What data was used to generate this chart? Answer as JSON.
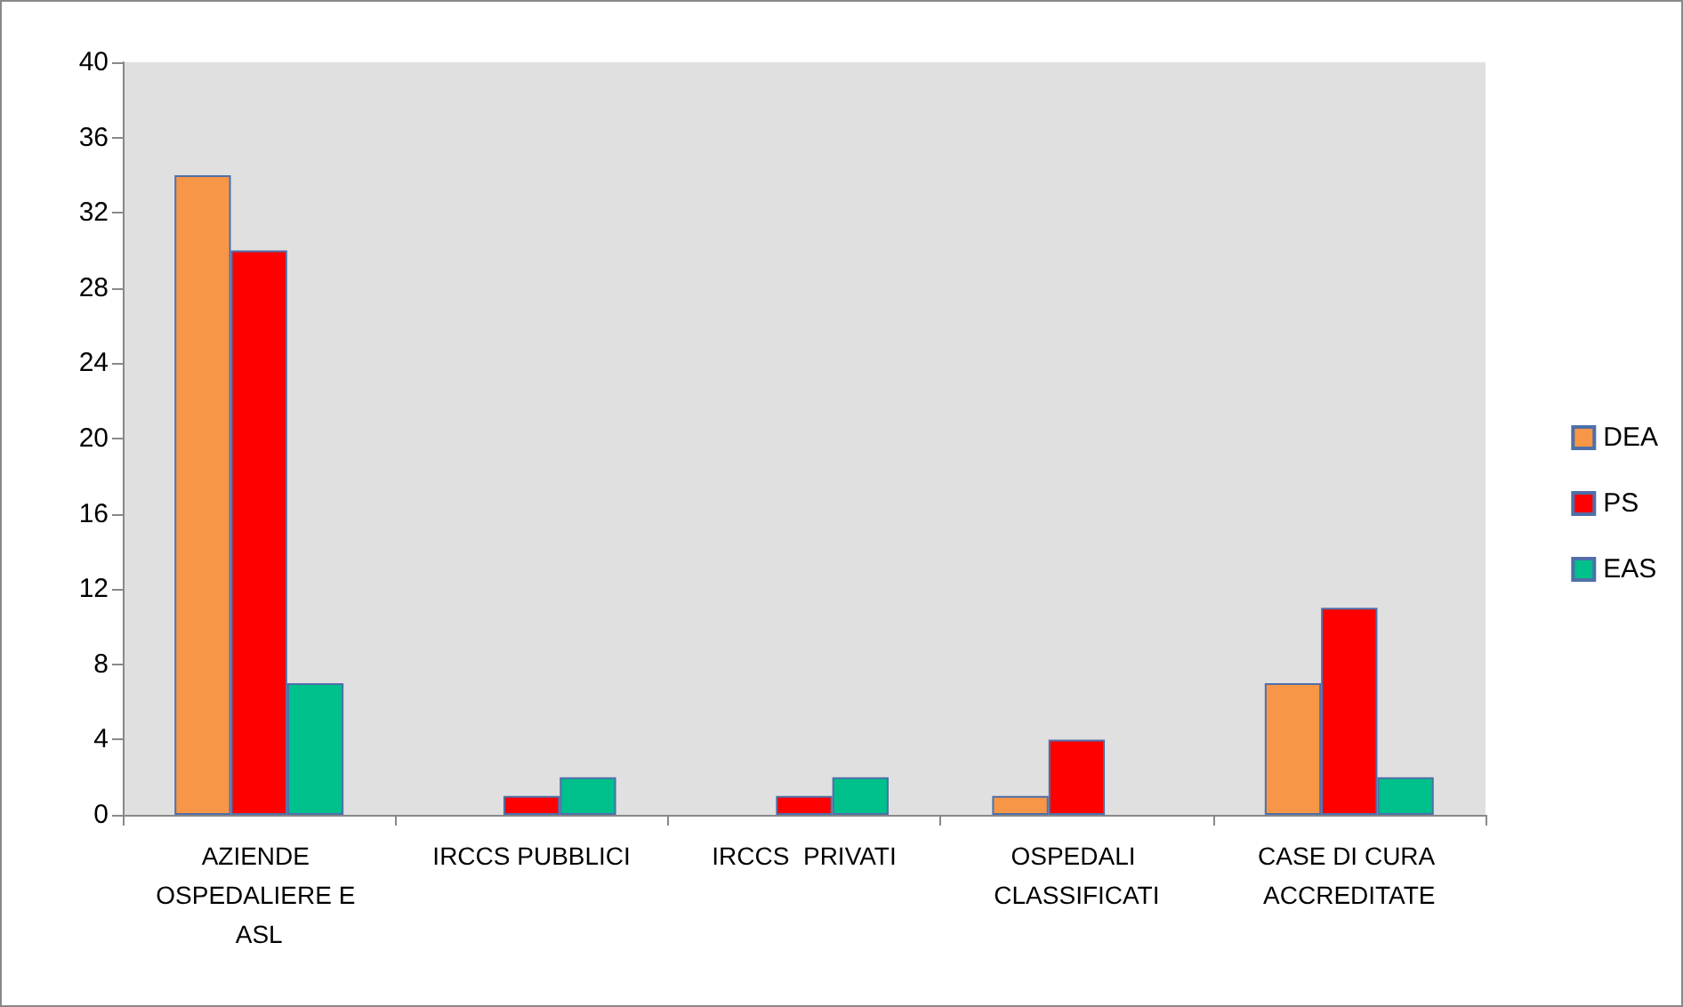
{
  "chart_data": {
    "type": "bar",
    "categories": [
      "AZIENDE OSPEDALIERE E ASL",
      "IRCCS PUBBLICI",
      "IRCCS  PRIVATI",
      "OSPEDALI CLASSIFICATI",
      "CASE DI CURA ACCREDITATE"
    ],
    "series": [
      {
        "name": "DEA",
        "color": "#f79646",
        "values": [
          34,
          0,
          0,
          1,
          7
        ]
      },
      {
        "name": "PS",
        "color": "#ff0000",
        "values": [
          30,
          1,
          1,
          4,
          11
        ]
      },
      {
        "name": "EAS",
        "color": "#00c08b",
        "values": [
          7,
          2,
          2,
          0,
          2
        ]
      }
    ],
    "ylim": [
      0,
      40
    ],
    "yticks": [
      0,
      4,
      8,
      12,
      16,
      20,
      24,
      28,
      32,
      36,
      40
    ],
    "grid": false,
    "legend": "right"
  }
}
